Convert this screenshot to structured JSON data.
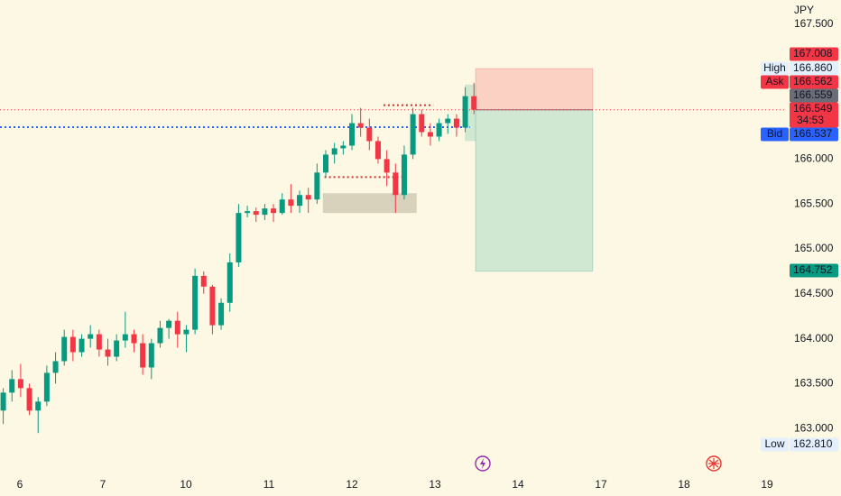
{
  "chart_data": {
    "type": "candlestick",
    "currency": "JPY",
    "up_color": "#089981",
    "down_color": "#f23645",
    "xlim": [
      -0.239,
      9.239
    ],
    "ylim": [
      162.5,
      167.771
    ],
    "xticks": [
      {
        "value": 0,
        "label": "6"
      },
      {
        "value": 1,
        "label": "7"
      },
      {
        "value": 2,
        "label": "10"
      },
      {
        "value": 3,
        "label": "11"
      },
      {
        "value": 4,
        "label": "12"
      },
      {
        "value": 5,
        "label": "13"
      },
      {
        "value": 6,
        "label": "14"
      },
      {
        "value": 7,
        "label": "17"
      },
      {
        "value": 8,
        "label": "18"
      },
      {
        "value": 9,
        "label": "19"
      }
    ],
    "yticks": [
      {
        "value": 167.5,
        "label": "167.500"
      },
      {
        "value": 166,
        "label": "166.000"
      },
      {
        "value": 165.5,
        "label": "165.500"
      },
      {
        "value": 165,
        "label": "165.000"
      },
      {
        "value": 164.5,
        "label": "164.500"
      },
      {
        "value": 164,
        "label": "164.000"
      },
      {
        "value": 163.5,
        "label": "163.500"
      },
      {
        "value": 163,
        "label": "163.000"
      }
    ],
    "candles": {
      "x": [
        -0.2,
        -0.095,
        0.01,
        0.115,
        0.22,
        0.325,
        0.43,
        0.535,
        0.64,
        0.745,
        0.85,
        0.955,
        1.06,
        1.165,
        1.27,
        1.375,
        1.48,
        1.585,
        1.69,
        1.795,
        1.9,
        2.005,
        2.11,
        2.215,
        2.32,
        2.425,
        2.53,
        2.635,
        2.74,
        2.845,
        2.95,
        3.055,
        3.16,
        3.265,
        3.37,
        3.475,
        3.58,
        3.685,
        3.79,
        3.895,
        4.0,
        4.105,
        4.21,
        4.315,
        4.42,
        4.525,
        4.63,
        4.735,
        4.84,
        4.945,
        5.05,
        5.155,
        5.26,
        5.365,
        5.47
      ],
      "open": [
        163.2,
        163.4,
        163.55,
        163.45,
        163.2,
        163.3,
        163.62,
        163.75,
        164.02,
        163.85,
        164.0,
        164.05,
        163.88,
        163.8,
        163.98,
        164.05,
        163.95,
        163.68,
        163.95,
        164.12,
        164.2,
        164.05,
        164.1,
        164.7,
        164.58,
        164.15,
        164.4,
        164.85,
        165.4,
        165.42,
        165.38,
        165.45,
        165.4,
        165.55,
        165.48,
        165.6,
        165.55,
        165.85,
        166.05,
        166.12,
        166.15,
        166.4,
        166.35,
        166.2,
        166.0,
        165.85,
        165.6,
        166.05,
        166.5,
        166.3,
        166.25,
        166.4,
        166.45,
        166.35,
        166.7
      ],
      "high": [
        163.45,
        163.65,
        163.72,
        163.5,
        163.35,
        163.7,
        163.85,
        164.1,
        164.1,
        164.05,
        164.15,
        164.1,
        164.0,
        164.05,
        164.3,
        164.1,
        164.05,
        164.0,
        164.2,
        164.22,
        164.3,
        164.15,
        164.78,
        164.75,
        164.6,
        164.45,
        164.95,
        165.5,
        165.48,
        165.46,
        165.5,
        165.5,
        165.62,
        165.72,
        165.65,
        165.68,
        165.95,
        166.1,
        166.18,
        166.2,
        166.5,
        166.57,
        166.45,
        166.25,
        166.1,
        165.95,
        166.15,
        166.57,
        166.55,
        166.4,
        166.45,
        166.5,
        166.5,
        166.8,
        166.85
      ],
      "low": [
        163.05,
        163.3,
        163.35,
        163.15,
        162.95,
        163.25,
        163.5,
        163.7,
        163.75,
        163.8,
        163.9,
        163.8,
        163.7,
        163.75,
        163.9,
        163.85,
        163.6,
        163.55,
        163.9,
        164.0,
        163.9,
        163.85,
        164.05,
        164.5,
        164.05,
        164.1,
        164.3,
        164.8,
        165.35,
        165.3,
        165.32,
        165.3,
        165.38,
        165.4,
        165.4,
        165.4,
        165.5,
        165.8,
        165.95,
        166.05,
        166.1,
        166.25,
        166.1,
        165.95,
        165.7,
        165.4,
        165.55,
        166.0,
        166.25,
        166.15,
        166.2,
        166.28,
        166.25,
        166.3,
        166.5
      ],
      "close": [
        163.4,
        163.55,
        163.45,
        163.2,
        163.3,
        163.62,
        163.75,
        164.02,
        163.85,
        164.0,
        164.05,
        163.88,
        163.8,
        163.98,
        164.05,
        163.95,
        163.68,
        163.95,
        164.12,
        164.2,
        164.05,
        164.1,
        164.7,
        164.58,
        164.15,
        164.4,
        164.85,
        165.4,
        165.42,
        165.38,
        165.45,
        165.4,
        165.55,
        165.48,
        165.6,
        165.55,
        165.85,
        166.05,
        166.12,
        166.15,
        166.4,
        166.35,
        166.2,
        166.0,
        165.85,
        165.6,
        166.05,
        166.5,
        166.3,
        166.25,
        166.4,
        166.45,
        166.35,
        166.7,
        166.549
      ]
    },
    "price_labels": [
      {
        "value": 167.008,
        "label": "167.008",
        "color": "#f23645"
      },
      {
        "value": 166.86,
        "label": "166.860",
        "tag": "High",
        "color": "#e3effd"
      },
      {
        "value": 166.562,
        "label": "166.562",
        "tag": "Ask",
        "color": "#f23645"
      },
      {
        "value": 166.559,
        "label": "166.559",
        "color": "#6a6d78"
      },
      {
        "value": 166.549,
        "label": "166.549",
        "timer": "34:53",
        "color": "#f23645"
      },
      {
        "value": 166.537,
        "label": "166.537",
        "tag": "Bid",
        "color": "#2962ff"
      },
      {
        "value": 164.752,
        "label": "164.752",
        "color": "#089981"
      },
      {
        "value": 162.81,
        "label": "162.810",
        "tag": "Low",
        "color": "#e3effd"
      }
    ],
    "position": {
      "x_start": 5.49,
      "x_end": 6.9,
      "stop": 167.008,
      "entry": 166.549,
      "target": 164.752
    },
    "lines": [
      {
        "value": 166.355,
        "x_start": -0.239,
        "x_end": 5.42,
        "color": "#2962ff"
      },
      {
        "value": 166.6,
        "x_start": 4.38,
        "x_end": 4.98,
        "color": "#d32f2f"
      },
      {
        "value": 165.8,
        "x_start": 3.67,
        "x_end": 4.6,
        "color": "#d32f2f"
      }
    ],
    "zones": [
      {
        "top": 165.62,
        "bottom": 165.4,
        "x_start": 3.65,
        "x_end": 4.78,
        "color": "rgba(160,150,130,0.4)"
      },
      {
        "top": 166.83,
        "bottom": 166.2,
        "x_start": 5.36,
        "x_end": 5.49,
        "color": "rgba(8,153,129,0.18)"
      }
    ]
  }
}
